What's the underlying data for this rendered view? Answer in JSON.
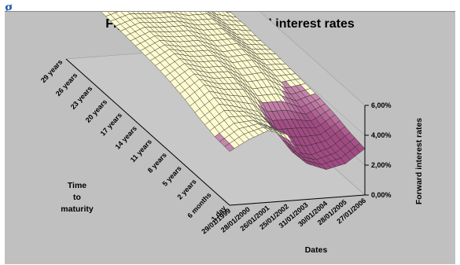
{
  "page": {
    "heading_fragment": "g"
  },
  "chart_data": {
    "type": "surface",
    "title": "Figure 3: Estimated forward interest rates",
    "xlabel": "Dates",
    "ylabel": "Time to maturity",
    "ylabel_lines": [
      "Time",
      "to",
      "maturity"
    ],
    "zlabel": "Forward interest rates",
    "dates": [
      "29/01/1999",
      "28/01/2000",
      "26/01/2001",
      "25/01/2002",
      "31/01/2003",
      "30/01/2004",
      "28/01/2005",
      "27/01/2006"
    ],
    "maturities": [
      "1 day",
      "6 months",
      "2 years",
      "5 years",
      "8 years",
      "11 years",
      "14 years",
      "17 years",
      "20 years",
      "23 years",
      "26 years",
      "29 years"
    ],
    "z_ticks": [
      "0,00%",
      "2,00%",
      "4,00%",
      "6,00%"
    ],
    "zlim": [
      0,
      6
    ],
    "grid": true,
    "colors": {
      "surface_high": "#fffbd0",
      "surface_low": "#a04a82",
      "background": "#c0c0c0"
    },
    "values": [
      [
        3.6,
        4.3,
        4.8,
        4.4,
        2.4,
        1.9,
        2.2,
        3.1
      ],
      [
        3.7,
        4.5,
        4.6,
        4.0,
        2.3,
        2.0,
        2.4,
        3.3
      ],
      [
        4.0,
        4.9,
        4.6,
        4.2,
        2.9,
        2.9,
        2.8,
        3.6
      ],
      [
        4.4,
        5.3,
        4.9,
        4.8,
        3.8,
        3.8,
        3.3,
        3.8
      ],
      [
        4.7,
        5.5,
        5.1,
        5.1,
        4.3,
        4.4,
        3.7,
        3.9
      ],
      [
        4.9,
        5.6,
        5.3,
        5.3,
        4.7,
        4.8,
        4.0,
        4.0
      ],
      [
        5.0,
        5.6,
        5.4,
        5.4,
        4.9,
        5.0,
        4.2,
        4.1
      ],
      [
        5.1,
        5.6,
        5.5,
        5.5,
        5.1,
        5.1,
        4.3,
        4.1
      ],
      [
        5.2,
        5.6,
        5.5,
        5.5,
        5.2,
        5.2,
        4.4,
        4.2
      ],
      [
        5.3,
        5.6,
        5.6,
        5.6,
        5.3,
        5.3,
        4.5,
        4.2
      ],
      [
        5.4,
        5.7,
        5.6,
        5.6,
        5.4,
        5.3,
        4.5,
        4.3
      ],
      [
        5.5,
        5.7,
        5.7,
        5.7,
        5.4,
        5.4,
        4.6,
        4.3
      ]
    ]
  }
}
